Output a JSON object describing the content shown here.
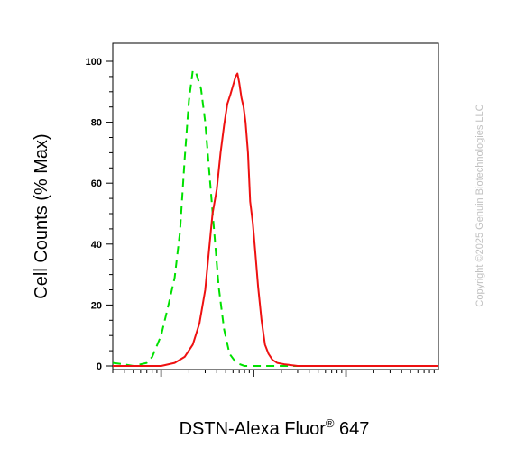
{
  "chart_data": {
    "type": "line",
    "title": "",
    "ylabel": "Cell Counts (% Max)",
    "xlabel_main": "DSTN-Alexa Fluor",
    "xlabel_sup": "®",
    "xlabel_tail": " 647",
    "xscale": "log",
    "xlim": [
      3,
      10000
    ],
    "ylim": [
      0,
      100
    ],
    "yticks": [
      "0",
      "20",
      "40",
      "60",
      "80",
      "100"
    ],
    "grid": false,
    "legend": "none",
    "series": [
      {
        "color": "#00e000",
        "style": "dashed",
        "points": [
          [
            3,
            1
          ],
          [
            4,
            0.5
          ],
          [
            5,
            0
          ],
          [
            7,
            1
          ],
          [
            8,
            3
          ],
          [
            10,
            10
          ],
          [
            12,
            20
          ],
          [
            14,
            29
          ],
          [
            16,
            44
          ],
          [
            18,
            68
          ],
          [
            20,
            87
          ],
          [
            22,
            97
          ],
          [
            24,
            96
          ],
          [
            27,
            91
          ],
          [
            30,
            80
          ],
          [
            34,
            60
          ],
          [
            38,
            42
          ],
          [
            42,
            26
          ],
          [
            48,
            12
          ],
          [
            55,
            4
          ],
          [
            65,
            1
          ],
          [
            80,
            0
          ],
          [
            100,
            0
          ],
          [
            200,
            0
          ],
          [
            1000,
            0
          ],
          [
            10000,
            0
          ]
        ]
      },
      {
        "color": "#ee1111",
        "style": "solid",
        "points": [
          [
            3,
            0
          ],
          [
            5,
            0
          ],
          [
            10,
            0
          ],
          [
            14,
            1
          ],
          [
            18,
            3
          ],
          [
            22,
            7
          ],
          [
            26,
            14
          ],
          [
            30,
            25
          ],
          [
            33,
            38
          ],
          [
            36,
            50
          ],
          [
            40,
            58
          ],
          [
            44,
            70
          ],
          [
            48,
            79
          ],
          [
            52,
            86
          ],
          [
            56,
            89
          ],
          [
            60,
            92
          ],
          [
            64,
            95
          ],
          [
            67,
            96
          ],
          [
            70,
            93
          ],
          [
            74,
            88
          ],
          [
            78,
            85
          ],
          [
            82,
            80
          ],
          [
            87,
            70
          ],
          [
            92,
            54
          ],
          [
            98,
            47
          ],
          [
            104,
            38
          ],
          [
            112,
            26
          ],
          [
            122,
            15
          ],
          [
            133,
            7
          ],
          [
            145,
            4
          ],
          [
            160,
            2
          ],
          [
            180,
            1
          ],
          [
            220,
            0.5
          ],
          [
            300,
            0
          ],
          [
            1000,
            0
          ],
          [
            10000,
            0
          ]
        ]
      }
    ]
  },
  "watermark": "Copyright ©2025 Genuin Biotechnologies LLC"
}
